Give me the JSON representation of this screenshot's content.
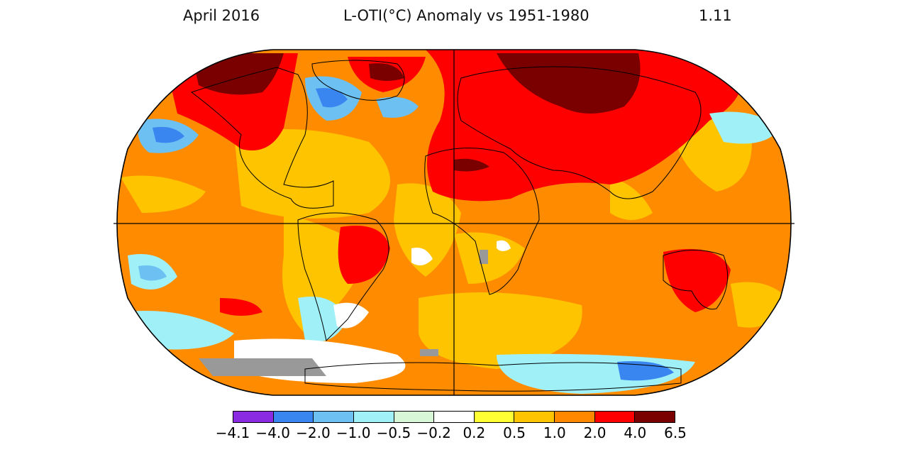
{
  "header": {
    "date": "April 2016",
    "title": "L-OTI(°C) Anomaly vs 1951-1980",
    "global_mean": "1.11"
  },
  "legend": {
    "labels": [
      "−4.1",
      "−4.0",
      "−2.0",
      "−1.0",
      "−0.5",
      "−0.2",
      "0.2",
      "0.5",
      "1.0",
      "2.0",
      "4.0",
      "6.5"
    ],
    "colors": [
      "#8a2be2",
      "#3a86f0",
      "#6cc0f2",
      "#9ff0f7",
      "#d7f7d7",
      "#ffffff",
      "#ffff33",
      "#ffc400",
      "#ff8800",
      "#ff0000",
      "#7a0000"
    ]
  },
  "palette": {
    "ocean_base": "#ff8c00",
    "land_outline": "#000000",
    "missing_data": "#999999"
  }
}
